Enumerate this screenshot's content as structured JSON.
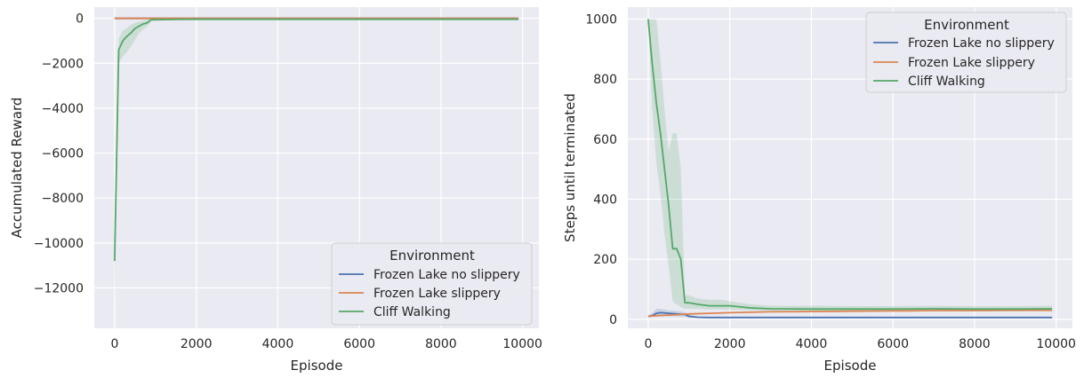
{
  "chart_data": [
    {
      "type": "line",
      "xlabel": "Episode",
      "ylabel": "Accumulated Reward",
      "xlim": [
        -500,
        10400
      ],
      "ylim": [
        -13800,
        500
      ],
      "xticks": [
        0,
        2000,
        4000,
        6000,
        8000,
        10000
      ],
      "yticks": [
        0,
        -2000,
        -4000,
        -6000,
        -8000,
        -10000,
        -12000
      ],
      "xtick_labels": [
        "0",
        "2000",
        "4000",
        "6000",
        "8000",
        "10000"
      ],
      "ytick_labels": [
        "0",
        "−2000",
        "−4000",
        "−6000",
        "−8000",
        "−10000",
        "−12000"
      ],
      "grid": true,
      "legend": {
        "title": "Environment",
        "placement": "lower-right",
        "entries": [
          "Frozen Lake no slippery",
          "Frozen Lake slippery",
          "Cliff Walking"
        ]
      },
      "series": [
        {
          "name": "Frozen Lake no slippery",
          "color": "#4c72b0",
          "x": [
            0,
            200,
            500,
            1000,
            2000,
            4000,
            6000,
            8000,
            9900
          ],
          "y": [
            0,
            0,
            0,
            0,
            0,
            0,
            0,
            0,
            0
          ],
          "band_lower": [
            0,
            0,
            0,
            0,
            0,
            0,
            0,
            0,
            0
          ],
          "band_upper": [
            0,
            0,
            0,
            0,
            0,
            0,
            0,
            0,
            0
          ]
        },
        {
          "name": "Frozen Lake slippery",
          "color": "#dd8452",
          "x": [
            0,
            200,
            500,
            1000,
            2000,
            4000,
            6000,
            8000,
            9900
          ],
          "y": [
            0,
            0,
            0,
            0,
            0,
            0,
            0,
            0,
            0
          ],
          "band_lower": [
            0,
            0,
            0,
            0,
            0,
            0,
            0,
            0,
            0
          ],
          "band_upper": [
            0,
            0,
            0,
            0,
            0,
            0,
            0,
            0,
            0
          ]
        },
        {
          "name": "Cliff Walking",
          "color": "#55a868",
          "x": [
            0,
            100,
            200,
            300,
            400,
            500,
            600,
            700,
            800,
            900,
            1000,
            1500,
            2000,
            3000,
            4000,
            5000,
            6000,
            7000,
            8000,
            9000,
            9900
          ],
          "y": [
            -10800,
            -1400,
            -1000,
            -800,
            -650,
            -450,
            -350,
            -250,
            -200,
            -60,
            -60,
            -50,
            -40,
            -40,
            -40,
            -40,
            -40,
            -40,
            -40,
            -40,
            -40
          ],
          "band_lower": [
            -12700,
            -2000,
            -1700,
            -1500,
            -1250,
            -950,
            -650,
            -500,
            -350,
            -120,
            -100,
            -80,
            -60,
            -60,
            -60,
            -60,
            -60,
            -60,
            -60,
            -60,
            -60
          ],
          "band_upper": [
            -9000,
            -900,
            -550,
            -420,
            -300,
            -200,
            -150,
            -100,
            -60,
            -20,
            -20,
            -25,
            -20,
            -20,
            -20,
            -20,
            -20,
            -20,
            -20,
            -20,
            -20
          ]
        }
      ]
    },
    {
      "type": "line",
      "xlabel": "Episode",
      "ylabel": "Steps until terminated",
      "xlim": [
        -500,
        10400
      ],
      "ylim": [
        -30,
        1040
      ],
      "xticks": [
        0,
        2000,
        4000,
        6000,
        8000,
        10000
      ],
      "yticks": [
        0,
        200,
        400,
        600,
        800,
        1000
      ],
      "xtick_labels": [
        "0",
        "2000",
        "4000",
        "6000",
        "8000",
        "10000"
      ],
      "ytick_labels": [
        "0",
        "200",
        "400",
        "600",
        "800",
        "1000"
      ],
      "grid": true,
      "legend": {
        "title": "Environment",
        "placement": "upper-right",
        "entries": [
          "Frozen Lake no slippery",
          "Frozen Lake slippery",
          "Cliff Walking"
        ]
      },
      "series": [
        {
          "name": "Frozen Lake no slippery",
          "color": "#4c72b0",
          "x": [
            0,
            100,
            200,
            300,
            500,
            700,
            900,
            1000,
            1200,
            1500,
            2000,
            4000,
            6000,
            8000,
            9900
          ],
          "y": [
            10,
            12,
            20,
            22,
            20,
            18,
            16,
            10,
            7,
            6,
            6,
            6,
            6,
            6,
            6
          ],
          "band_lower": [
            6,
            8,
            10,
            12,
            10,
            9,
            8,
            6,
            6,
            6,
            6,
            6,
            6,
            6,
            6
          ],
          "band_upper": [
            14,
            20,
            35,
            35,
            30,
            28,
            24,
            16,
            9,
            7,
            7,
            7,
            7,
            7,
            7
          ],
          "draw_band": true
        },
        {
          "name": "Frozen Lake slippery",
          "color": "#dd8452",
          "x": [
            0,
            200,
            500,
            800,
            1000,
            1500,
            2000,
            3000,
            4000,
            5000,
            6000,
            7000,
            8000,
            9000,
            9900
          ],
          "y": [
            10,
            12,
            14,
            16,
            18,
            20,
            22,
            25,
            26,
            27,
            28,
            29,
            29,
            30,
            30
          ],
          "band_lower": [
            8,
            10,
            12,
            13,
            15,
            17,
            18,
            21,
            22,
            23,
            24,
            25,
            25,
            26,
            26
          ],
          "band_upper": [
            12,
            14,
            17,
            19,
            21,
            23,
            26,
            29,
            30,
            31,
            32,
            33,
            33,
            34,
            34
          ],
          "draw_band": false
        },
        {
          "name": "Cliff Walking",
          "color": "#55a868",
          "x": [
            0,
            100,
            200,
            300,
            400,
            500,
            600,
            700,
            800,
            900,
            1000,
            1200,
            1500,
            1800,
            2000,
            2500,
            3000,
            4000,
            5000,
            6000,
            7000,
            8000,
            9000,
            9900
          ],
          "y": [
            1000,
            850,
            720,
            620,
            500,
            380,
            235,
            235,
            200,
            55,
            55,
            50,
            45,
            45,
            45,
            38,
            35,
            34,
            34,
            34,
            35,
            34,
            34,
            35
          ],
          "band_lower": [
            1000,
            700,
            520,
            420,
            280,
            180,
            60,
            50,
            40,
            35,
            35,
            35,
            33,
            33,
            32,
            30,
            28,
            28,
            28,
            28,
            28,
            28,
            28,
            28
          ],
          "band_upper": [
            1000,
            1000,
            1000,
            860,
            700,
            560,
            620,
            620,
            500,
            80,
            80,
            70,
            65,
            65,
            60,
            50,
            45,
            45,
            44,
            44,
            45,
            44,
            44,
            45
          ],
          "draw_band": true
        }
      ]
    }
  ]
}
